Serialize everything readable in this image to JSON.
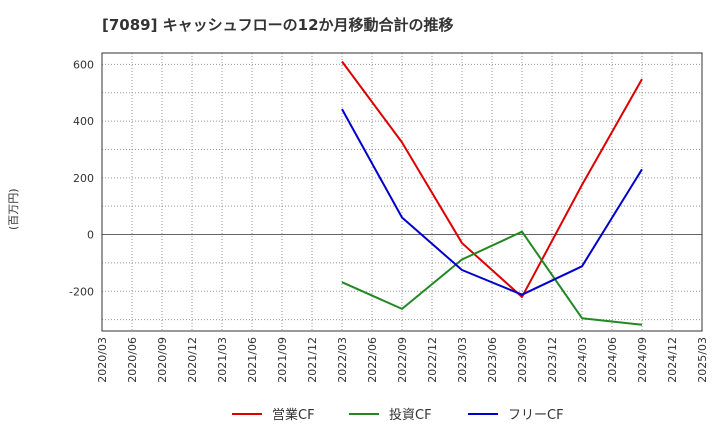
{
  "chart_data": {
    "type": "line",
    "title": "[7089]  キャッシュフローの12か月移動合計の推移",
    "ylabel": "(百万円)",
    "xlabel": "",
    "ylim": [
      -340,
      640
    ],
    "yticks": [
      -200,
      0,
      200,
      400,
      600
    ],
    "ytick_labels": [
      "-200",
      "0",
      "200",
      "400",
      "600"
    ],
    "grid": true,
    "legend_position": "bottom-center",
    "categories": [
      "2020/03",
      "2020/06",
      "2020/09",
      "2020/12",
      "2021/03",
      "2021/06",
      "2021/09",
      "2021/12",
      "2022/03",
      "2022/06",
      "2022/09",
      "2022/12",
      "2023/03",
      "2023/06",
      "2023/09",
      "2023/12",
      "2024/03",
      "2024/06",
      "2024/09",
      "2024/12",
      "2025/03"
    ],
    "series": [
      {
        "name": "営業CF",
        "color": "#dd0000",
        "points": [
          [
            "2022/03",
            610
          ],
          [
            "2022/09",
            325
          ],
          [
            "2023/03",
            -30
          ],
          [
            "2023/09",
            -220
          ],
          [
            "2024/03",
            175
          ],
          [
            "2024/09",
            548
          ]
        ]
      },
      {
        "name": "投資CF",
        "color": "#228822",
        "points": [
          [
            "2022/03",
            -168
          ],
          [
            "2022/09",
            -262
          ],
          [
            "2023/03",
            -88
          ],
          [
            "2023/09",
            10
          ],
          [
            "2024/03",
            -295
          ],
          [
            "2024/09",
            -318
          ]
        ]
      },
      {
        "name": "フリーCF",
        "color": "#0000cc",
        "points": [
          [
            "2022/03",
            442
          ],
          [
            "2022/09",
            60
          ],
          [
            "2023/03",
            -125
          ],
          [
            "2023/09",
            -212
          ],
          [
            "2024/03",
            -112
          ],
          [
            "2024/09",
            230
          ]
        ]
      }
    ]
  }
}
